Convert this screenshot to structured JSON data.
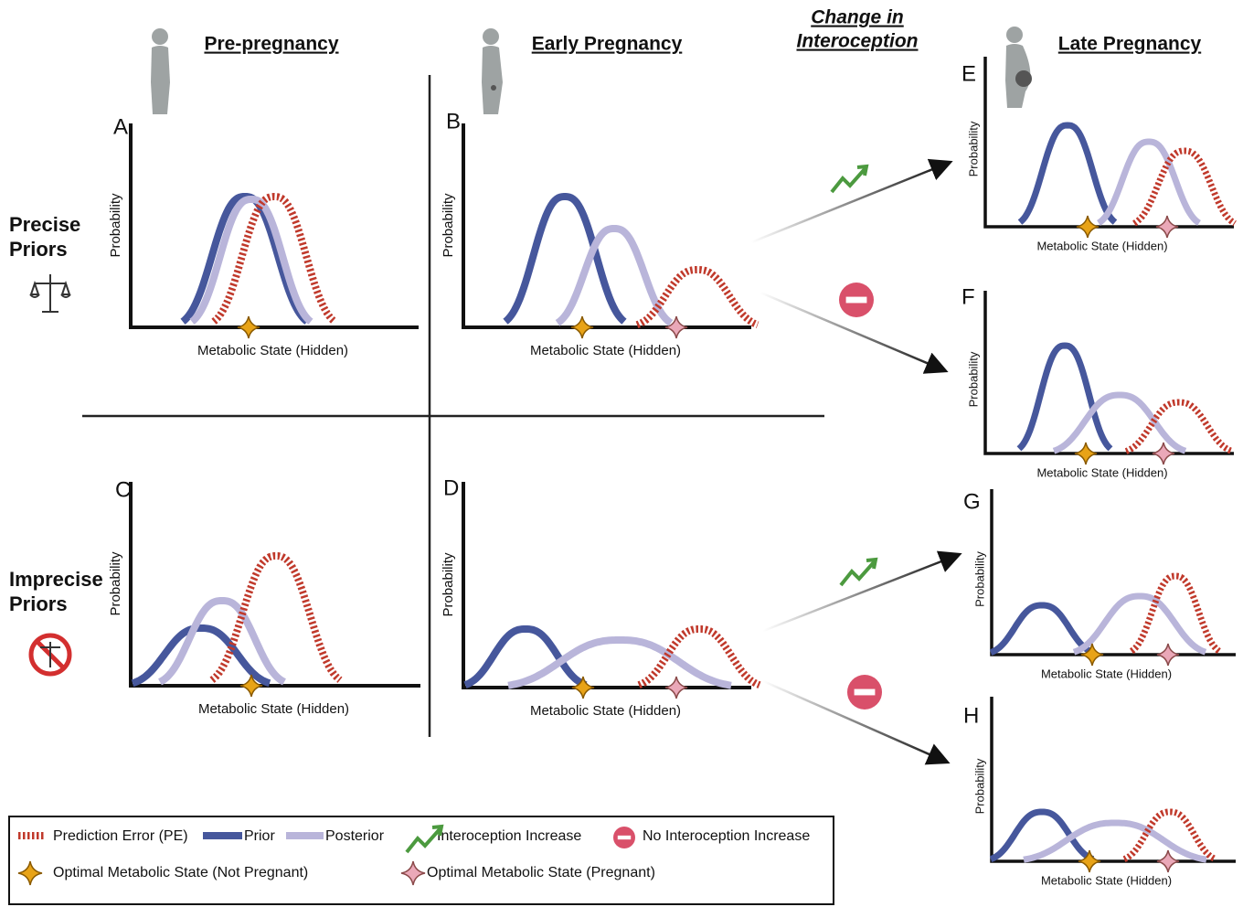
{
  "header": {
    "columns": [
      "Pre-pregnancy",
      "Early Pregnancy",
      "Late Pregnancy"
    ],
    "change": [
      "Change in",
      "Interoception"
    ]
  },
  "rows": [
    [
      "Precise",
      "Priors"
    ],
    [
      "Imprecise",
      "Priors"
    ]
  ],
  "panels": [
    {
      "letter": "A",
      "y_label": "Probability",
      "x_label": "Metabolic State (Hidden)"
    },
    {
      "letter": "B",
      "y_label": "Probability",
      "x_label": "Metabolic State (Hidden)"
    },
    {
      "letter": "C",
      "y_label": "Probability",
      "x_label": "Metabolic State (Hidden)"
    },
    {
      "letter": "D",
      "y_label": "Probability",
      "x_label": "Metabolic State (Hidden)"
    },
    {
      "letter": "E",
      "y_label": "Probability",
      "x_label": "Metabolic State (Hidden)"
    },
    {
      "letter": "F",
      "y_label": "Probability",
      "x_label": "Metabolic State (Hidden)"
    },
    {
      "letter": "G",
      "y_label": "Probability",
      "x_label": "Metabolic State (Hidden)"
    },
    {
      "letter": "H",
      "y_label": "Probability",
      "x_label": "Metabolic State (Hidden)"
    }
  ],
  "legend": [
    "Prediction Error (PE)",
    "Prior",
    "Posterior",
    "Interoception Increase",
    "No Interoception Increase",
    "Optimal Metabolic State (Not Pregnant)",
    "Optimal Metabolic State (Pregnant)"
  ]
}
